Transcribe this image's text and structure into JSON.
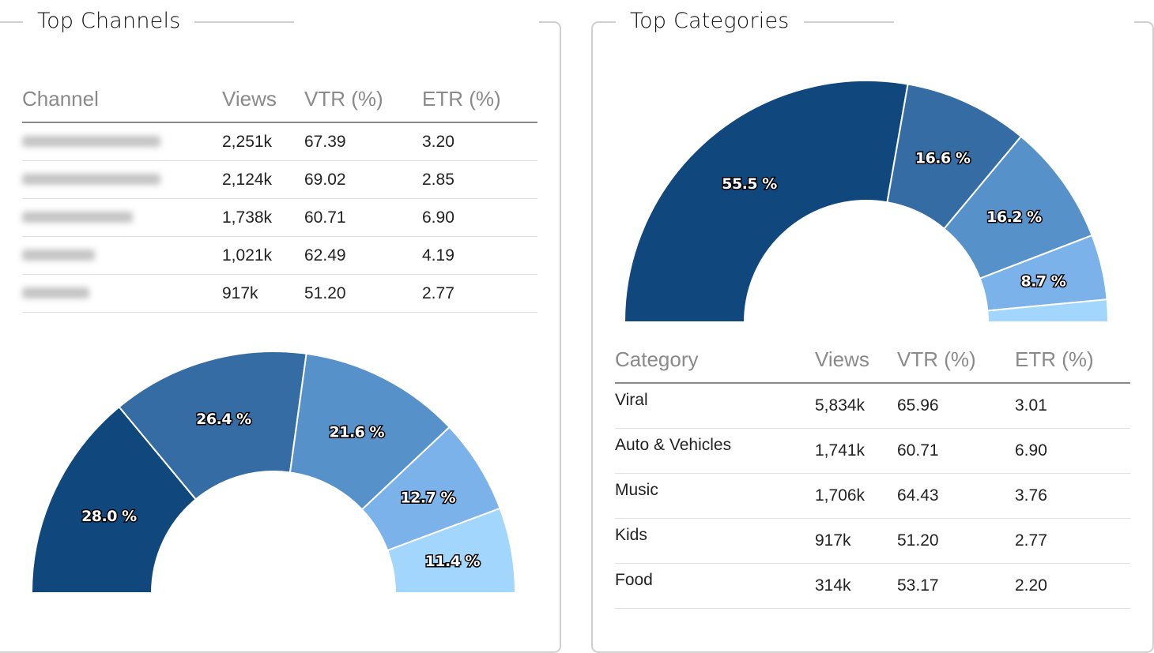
{
  "top_channels": {
    "title": "Top Channels",
    "table": {
      "headers": [
        "Channel",
        "Views",
        "VTR (%)",
        "ETR (%)"
      ],
      "rows": [
        {
          "channel": "",
          "views": "2,251k",
          "vtr": "67.39",
          "etr": "3.20"
        },
        {
          "channel": "",
          "views": "2,124k",
          "vtr": "69.02",
          "etr": "2.85"
        },
        {
          "channel": "",
          "views": "1,738k",
          "vtr": "60.71",
          "etr": "6.90"
        },
        {
          "channel": "",
          "views": "1,021k",
          "vtr": "62.49",
          "etr": "4.19"
        },
        {
          "channel": "",
          "views": "917k",
          "vtr": "51.20",
          "etr": "2.77"
        }
      ]
    }
  },
  "top_categories": {
    "title": "Top Categories",
    "table": {
      "headers": [
        "Category",
        "Views",
        "VTR (%)",
        "ETR (%)"
      ],
      "rows": [
        {
          "category": "Viral",
          "views": "5,834k",
          "vtr": "65.96",
          "etr": "3.01"
        },
        {
          "category": "Auto & Vehicles",
          "views": "1,741k",
          "vtr": "60.71",
          "etr": "6.90"
        },
        {
          "category": "Music",
          "views": "1,706k",
          "vtr": "64.43",
          "etr": "3.76"
        },
        {
          "category": "Kids",
          "views": "917k",
          "vtr": "51.20",
          "etr": "2.77"
        },
        {
          "category": "Food",
          "views": "314k",
          "vtr": "53.17",
          "etr": "2.20"
        }
      ]
    }
  },
  "colors": [
    "#10487e",
    "#356ca4",
    "#5791c9",
    "#7bb2e9",
    "#a2d6fd"
  ],
  "chart_data": [
    {
      "type": "pie",
      "variant": "semi-donut",
      "title": "Top Channels",
      "values": [
        28.0,
        26.4,
        21.6,
        12.7,
        11.4
      ],
      "labels": [
        "28.0 %",
        "26.4 %",
        "21.6 %",
        "12.7 %",
        "11.4 %"
      ]
    },
    {
      "type": "pie",
      "variant": "semi-donut",
      "title": "Top Categories",
      "categories": [
        "Viral",
        "Auto & Vehicles",
        "Music",
        "Kids",
        "Food"
      ],
      "values": [
        55.5,
        16.6,
        16.2,
        8.7,
        3.0
      ],
      "labels": [
        "55.5 %",
        "16.6 %",
        "16.2 %",
        "8.7 %",
        ""
      ]
    }
  ]
}
